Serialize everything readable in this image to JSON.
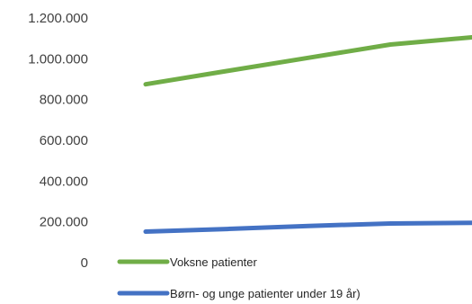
{
  "chart_data": {
    "type": "line",
    "x": [
      1,
      2,
      3,
      4,
      5
    ],
    "ylim": [
      0,
      1200000
    ],
    "yticks": [
      {
        "value": 0,
        "label": "0"
      },
      {
        "value": 200000,
        "label": "200.000"
      },
      {
        "value": 400000,
        "label": "400.000"
      },
      {
        "value": 600000,
        "label": "600.000"
      },
      {
        "value": 800000,
        "label": "800.000"
      },
      {
        "value": 1000000,
        "label": "1.000.000"
      },
      {
        "value": 1200000,
        "label": "1.200.000"
      }
    ],
    "grid": false,
    "legend_position": "bottom-left",
    "series": [
      {
        "name": "Voksne patienter",
        "color": "#70AD47",
        "values": [
          875000,
          940000,
          1005000,
          1070000,
          1105000
        ]
      },
      {
        "name": "Børn- og unge patienter under 19 år)",
        "color": "#4472C4",
        "values": [
          152000,
          165000,
          180000,
          192000,
          195000
        ]
      }
    ]
  }
}
